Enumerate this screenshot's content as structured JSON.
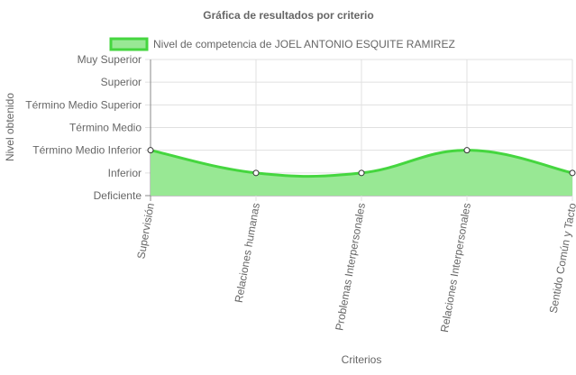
{
  "chart_data": {
    "type": "area",
    "title": "Gráfica de resultados por criterio",
    "xlabel": "Criterios",
    "ylabel": "Nivel obtenido",
    "categories": [
      "Supervisión",
      "Relaciones humanas",
      "Problemas Interpersonales",
      "Relaciones Interpersonales",
      "Sentido Común y Tacto"
    ],
    "y_levels": [
      "Deficiente",
      "Inferior",
      "Término Medio Inferior",
      "Término Medio",
      "Término Medio Superior",
      "Superior",
      "Muy Superior"
    ],
    "series": [
      {
        "name": "Nivel de competencia de JOEL ANTONIO ESQUITE RAMIREZ",
        "values": [
          2,
          1,
          1,
          2,
          1
        ]
      }
    ],
    "ylim": [
      0,
      6
    ],
    "grid": true,
    "legend_position": "top",
    "colors": {
      "fill": "#98e894",
      "stroke": "#45d63f",
      "point_fill": "#ffffff",
      "point_stroke": "#333333",
      "grid": "#e0e0e0",
      "axis": "#888888",
      "text": "#666666"
    }
  }
}
